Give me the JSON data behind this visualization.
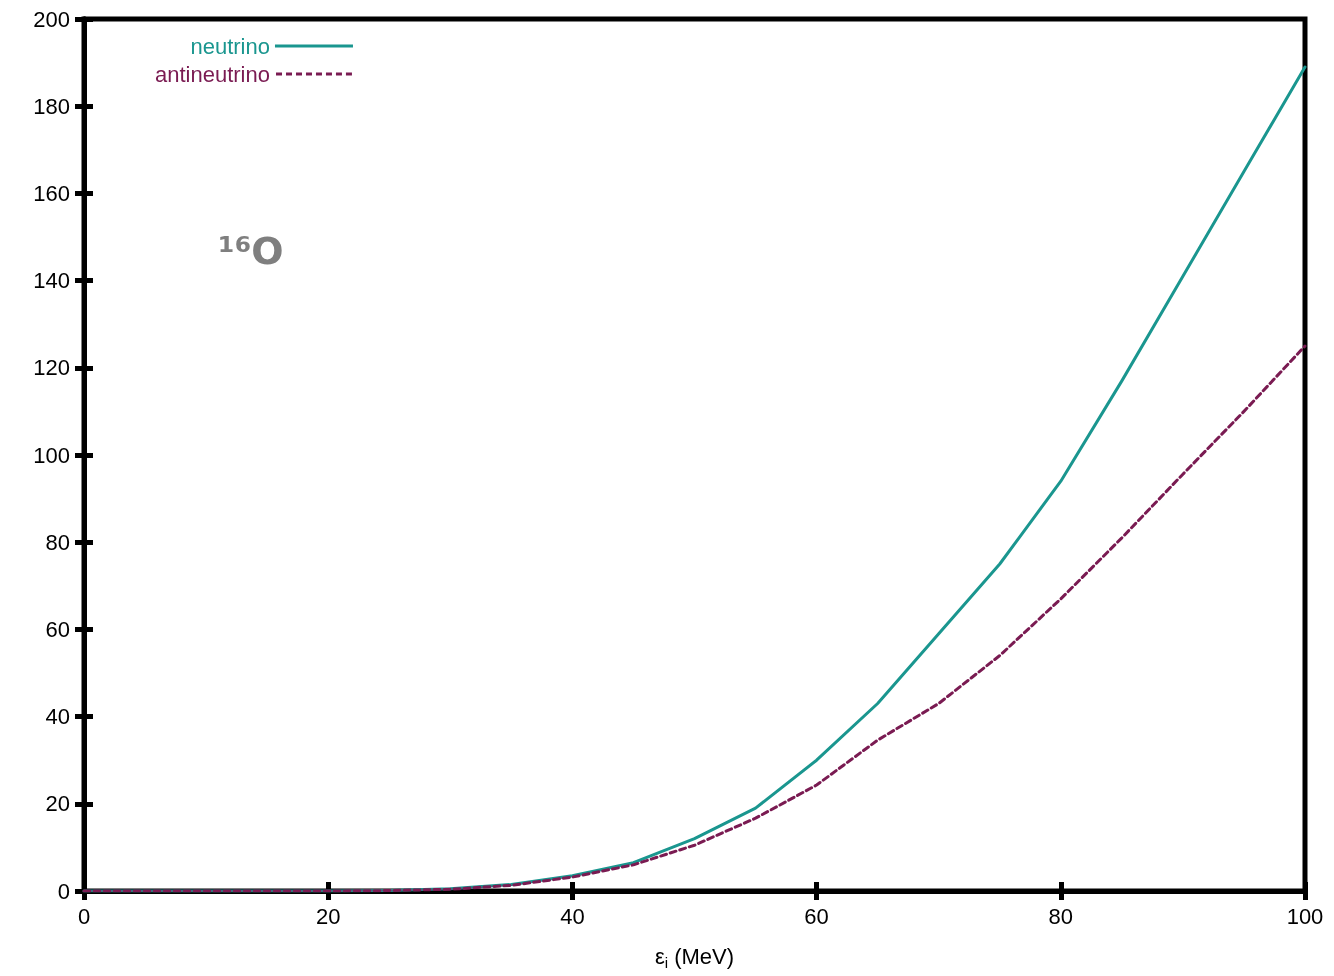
{
  "chart_data": {
    "type": "line",
    "xlabel": "ε$_{i}$ (MeV)",
    "annotations": [
      "¹⁶O"
    ],
    "x": [
      0,
      10,
      20,
      25,
      30,
      35,
      40,
      45,
      50,
      55,
      60,
      65,
      70,
      75,
      80,
      85,
      90,
      95,
      100
    ],
    "series": [
      {
        "name": "neutrino",
        "color": "#1a968f",
        "line_style": "solid",
        "values": [
          0,
          0,
          0,
          0.1,
          0.5,
          1.5,
          3.5,
          6.5,
          12,
          19,
          30,
          43,
          59,
          75,
          94,
          117,
          141,
          165,
          189
        ]
      },
      {
        "name": "antineutrino",
        "color": "#7a1b52",
        "line_style": "dashed",
        "values": [
          0,
          0,
          0,
          0.1,
          0.4,
          1.3,
          3.2,
          6,
          10.5,
          16.7,
          24.3,
          34.6,
          43,
          54,
          67,
          81,
          95.6,
          110,
          125
        ]
      }
    ],
    "xlim": [
      0,
      100
    ],
    "xticks": [
      0,
      20,
      40,
      60,
      80,
      100
    ],
    "ylim": [
      0,
      200
    ],
    "yticks": [
      0,
      20,
      40,
      60,
      80,
      100,
      120,
      140,
      160,
      180,
      200
    ],
    "grid": false,
    "legend": "top left",
    "marker": "none"
  }
}
